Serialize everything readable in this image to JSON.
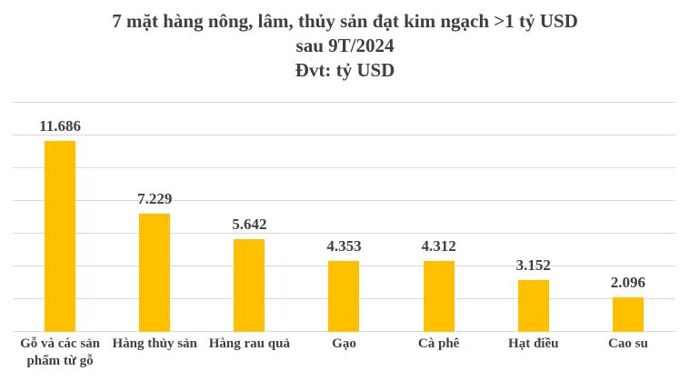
{
  "title": {
    "line1": "7 mặt hàng nông, lâm, thủy sản đạt kim ngạch >1 tỷ USD",
    "line2": "sau 9T/2024",
    "line3": "Đvt: tỷ USD"
  },
  "chart_data": {
    "type": "bar",
    "title": "7 mặt hàng nông, lâm, thủy sản đạt kim ngạch >1 tỷ USD sau 9T/2024",
    "unit_label": "Đvt: tỷ USD",
    "categories": [
      "Gỗ và các sản phẩm từ gỗ",
      "Hàng thủy sản",
      "Hàng rau quả",
      "Gạo",
      "Cà phê",
      "Hạt điều",
      "Cao su"
    ],
    "values": [
      11.686,
      7.229,
      5.642,
      4.353,
      4.312,
      3.152,
      2.096
    ],
    "value_labels": [
      "11.686",
      "7.229",
      "5.642",
      "4.353",
      "4.312",
      "3.152",
      "2.096"
    ],
    "xlabel": "",
    "ylabel": "",
    "ylim": [
      0,
      14
    ],
    "grid_step": 2,
    "grid": true,
    "legend": false,
    "bar_color": "#ffc000",
    "gridline_color": "#d9d9d9",
    "text_color": "#404040"
  }
}
